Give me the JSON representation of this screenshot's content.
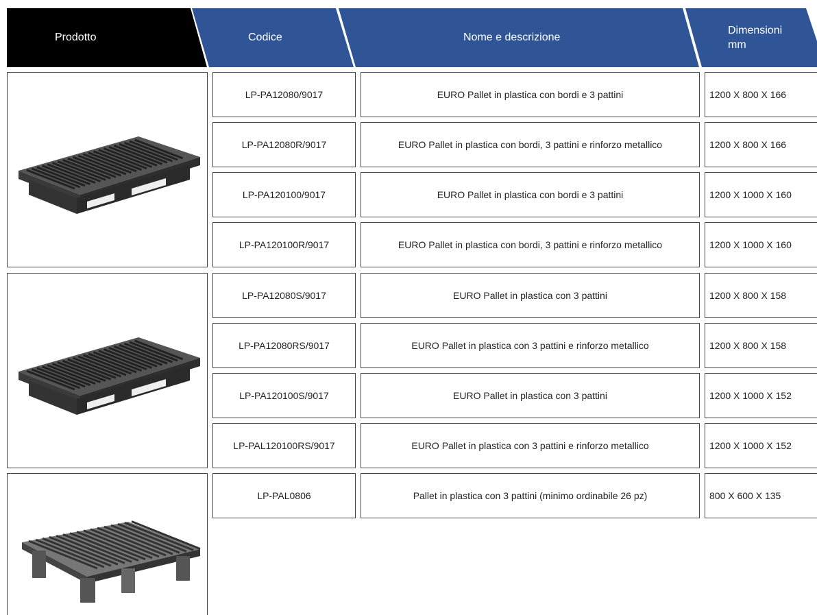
{
  "header": {
    "columns": [
      "Prodotto",
      "Codice",
      "Nome e descrizione"
    ],
    "dimensions": {
      "title": "Dimensioni",
      "unit": "mm"
    }
  },
  "groups": [
    {
      "items": [
        {
          "code": "LP-PA12080/9017",
          "description": "EURO Pallet in plastica con bordi e 3 pattini",
          "dimensions": "1200 X 800 X 166"
        },
        {
          "code": "LP-PA12080R/9017",
          "description": "EURO Pallet in plastica con bordi, 3 pattini e rinforzo metallico",
          "dimensions": "1200 X 800 X 166"
        },
        {
          "code": "LP-PA120100/9017",
          "description": "EURO Pallet in plastica con bordi e 3 pattini",
          "dimensions": "1200 X 1000 X 160"
        },
        {
          "code": "LP-PA120100R/9017",
          "description": "EURO Pallet in plastica con bordi, 3 pattini e rinforzo metallico",
          "dimensions": "1200 X 1000 X 160"
        }
      ]
    },
    {
      "items": [
        {
          "code": "LP-PA12080S/9017",
          "description": "EURO Pallet in plastica con 3 pattini",
          "dimensions": "1200 X 800 X 158"
        },
        {
          "code": "LP-PA12080RS/9017",
          "description": "EURO Pallet in plastica con 3 pattini e rinforzo metallico",
          "dimensions": "1200 X 800 X 158"
        },
        {
          "code": "LP-PA120100S/9017",
          "description": "EURO Pallet in plastica con 3 pattini",
          "dimensions": "1200 X 1000 X 152"
        },
        {
          "code": "LP-PAL120100RS/9017",
          "description": "EURO Pallet in plastica con 3 pattini e rinforzo metallico",
          "dimensions": "1200 X 1000 X 152"
        }
      ]
    },
    {
      "items": [
        {
          "code": "LP-PAL0806",
          "description": "Pallet in plastica con 3 pattini (minimo ordinabile 26 pz)",
          "dimensions": "800 X 600 X 135"
        }
      ]
    }
  ]
}
